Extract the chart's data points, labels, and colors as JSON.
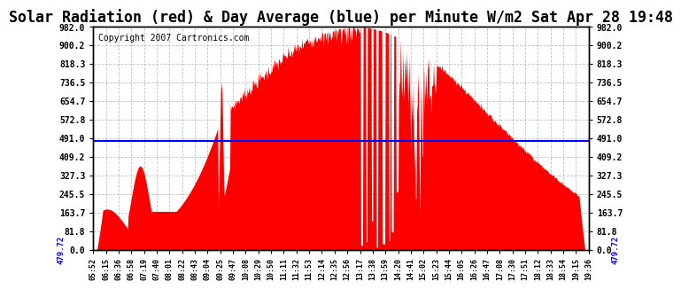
{
  "title": "Solar Radiation (red) & Day Average (blue) per Minute W/m2 Sat Apr 28 19:48",
  "copyright": "Copyright 2007 Cartronics.com",
  "day_average": 479.72,
  "y_ticks": [
    0.0,
    81.8,
    163.7,
    245.5,
    327.3,
    409.2,
    491.0,
    572.8,
    654.7,
    736.5,
    818.3,
    900.2,
    982.0
  ],
  "ymax": 982.0,
  "ymin": 0.0,
  "fill_color": "red",
  "avg_color": "blue",
  "bg_color": "white",
  "grid_color": "#bbbbbb",
  "title_fontsize": 12,
  "copyright_fontsize": 7,
  "x_tick_labels": [
    "05:52",
    "06:15",
    "06:36",
    "06:58",
    "07:19",
    "07:40",
    "08:01",
    "08:22",
    "08:43",
    "09:04",
    "09:25",
    "09:47",
    "10:08",
    "10:29",
    "10:50",
    "11:11",
    "11:32",
    "11:53",
    "12:14",
    "12:35",
    "12:56",
    "13:17",
    "13:38",
    "13:59",
    "14:20",
    "14:41",
    "15:02",
    "15:23",
    "15:44",
    "16:05",
    "16:26",
    "16:47",
    "17:08",
    "17:30",
    "17:51",
    "18:12",
    "18:33",
    "18:54",
    "19:15",
    "19:36"
  ]
}
